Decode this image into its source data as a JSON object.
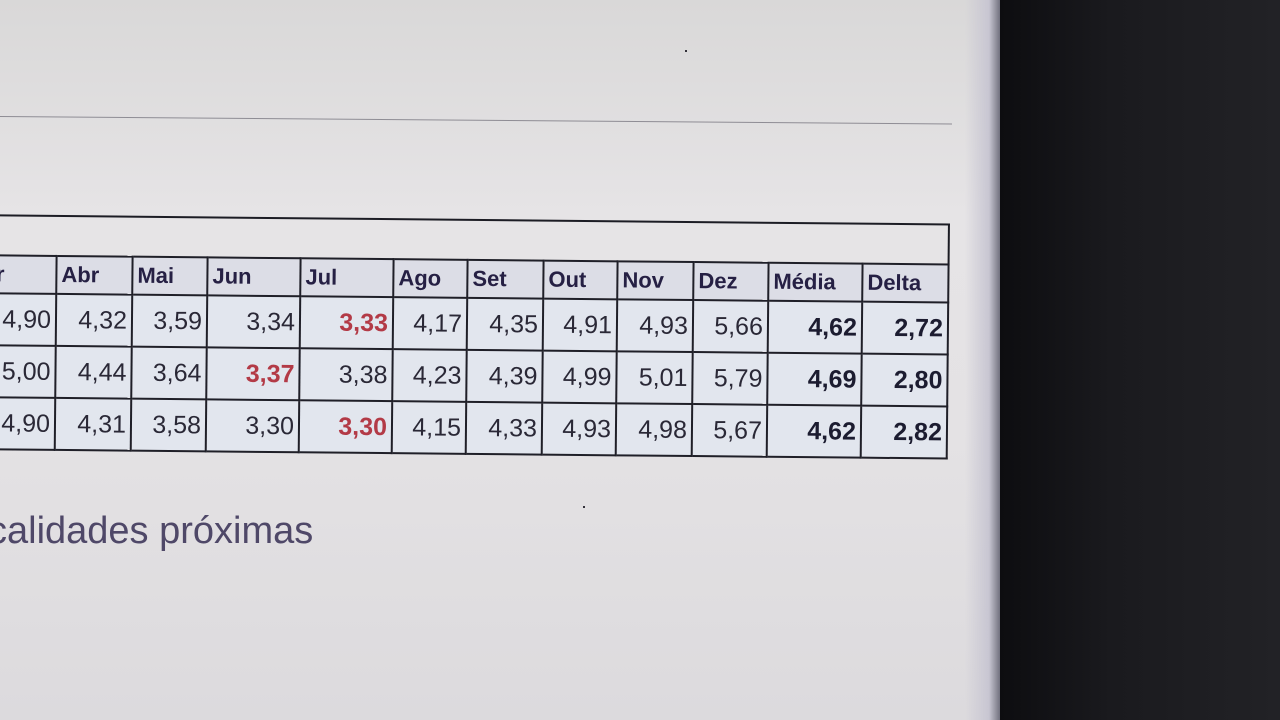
{
  "table": {
    "headers": [
      "Mar",
      "Abr",
      "Mai",
      "Jun",
      "Jul",
      "Ago",
      "Set",
      "Out",
      "Nov",
      "Dez",
      "Média",
      "Delta"
    ],
    "rows": [
      [
        "4,90",
        "4,32",
        "3,59",
        "3,34",
        "3,33",
        "4,17",
        "4,35",
        "4,91",
        "4,93",
        "5,66",
        "4,62",
        "2,72"
      ],
      [
        "5,00",
        "4,44",
        "3,64",
        "3,37",
        "3,38",
        "4,23",
        "4,39",
        "4,99",
        "5,01",
        "5,79",
        "4,69",
        "2,80"
      ],
      [
        "4,90",
        "4,31",
        "3,58",
        "3,30",
        "3,30",
        "4,15",
        "4,33",
        "4,93",
        "4,98",
        "5,67",
        "4,62",
        "2,82"
      ]
    ],
    "highlight": [
      [
        0,
        4
      ],
      [
        1,
        3
      ],
      [
        2,
        4
      ]
    ],
    "highlight_color": "#b33a46"
  },
  "section_heading": "calidades próximas"
}
